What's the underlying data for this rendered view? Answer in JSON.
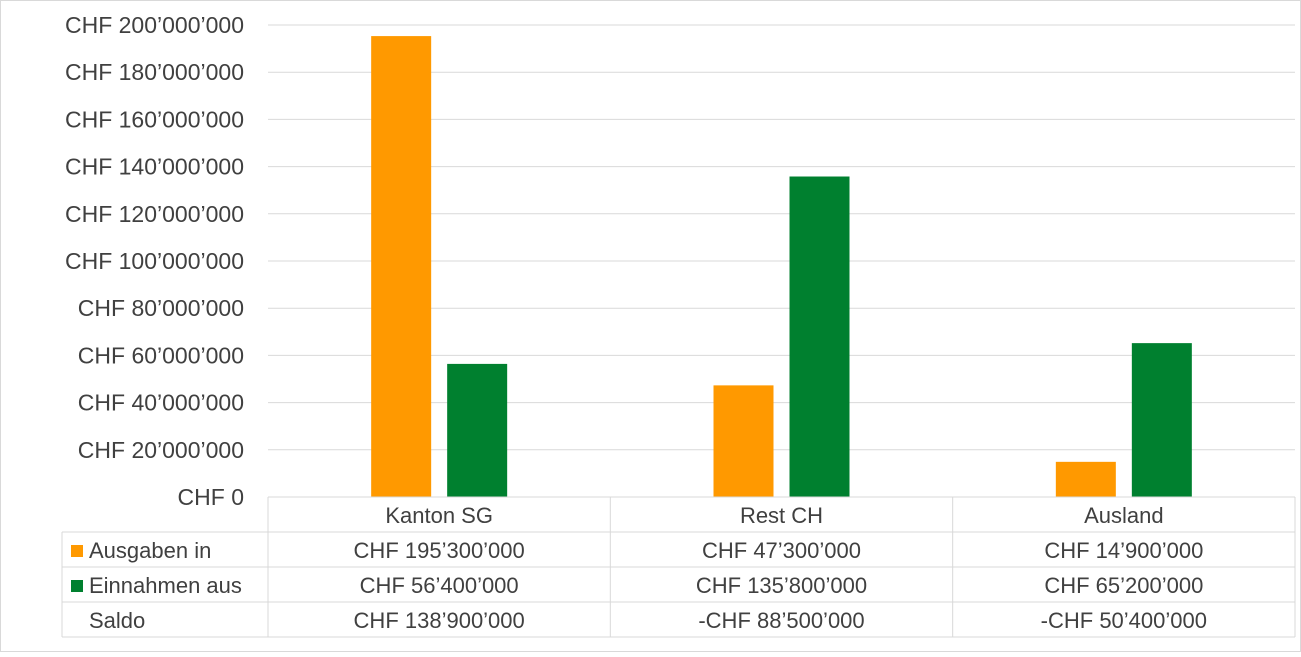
{
  "chart_data": {
    "type": "bar",
    "categories": [
      "Kanton SG",
      "Rest CH",
      "Ausland"
    ],
    "series": [
      {
        "name": "Ausgaben in",
        "values": [
          195300000,
          47300000,
          14900000
        ],
        "color": "#FF9900"
      },
      {
        "name": "Einnahmen aus",
        "values": [
          56400000,
          135800000,
          65200000
        ],
        "color": "#00802F"
      }
    ],
    "ylim": [
      0,
      200000000
    ],
    "yticks": [
      "CHF 0",
      "CHF 20’000’000",
      "CHF 40’000’000",
      "CHF 60’000’000",
      "CHF 80’000’000",
      "CHF 100’000’000",
      "CHF 120’000’000",
      "CHF 140’000’000",
      "CHF 160’000’000",
      "CHF 180’000’000",
      "CHF 200’000’000"
    ],
    "grid": true,
    "legend": "data-table",
    "table": {
      "rows": [
        {
          "label": "Ausgaben in",
          "values": [
            "CHF 195’300’000",
            "CHF 47’300’000",
            "CHF 14’900’000"
          ]
        },
        {
          "label": "Einnahmen aus",
          "values": [
            "CHF 56’400’000",
            "CHF 135’800’000",
            "CHF 65’200’000"
          ]
        },
        {
          "label": "Saldo",
          "values": [
            "CHF 138’900’000",
            "-CHF 88’500’000",
            "-CHF 50’400’000"
          ]
        }
      ]
    },
    "colors": {
      "grid": "#D9D9D9",
      "text": "#404040"
    }
  }
}
